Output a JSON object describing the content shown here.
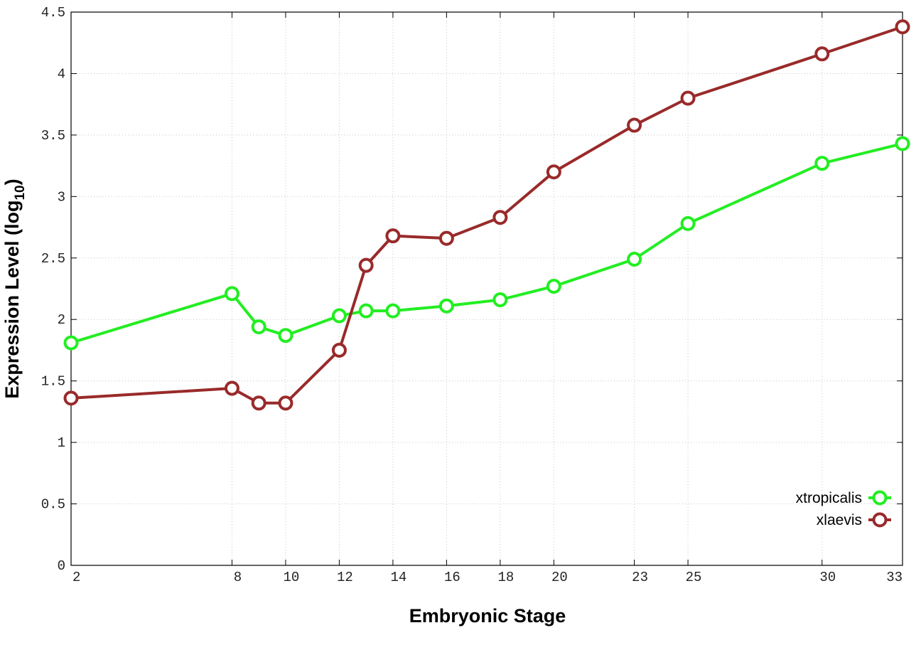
{
  "chart_data": {
    "type": "line",
    "xlabel": "Embryonic Stage",
    "ylabel": "Expression Level (log10)",
    "ylabel_main": "Expression Level (log",
    "ylabel_sub": "10",
    "ylabel_close": ")",
    "xlim": [
      2,
      33
    ],
    "ylim": [
      0,
      4.5
    ],
    "x_ticks": [
      2,
      8,
      10,
      12,
      14,
      16,
      18,
      20,
      23,
      25,
      30,
      33
    ],
    "x_tick_labels": [
      "2",
      "8",
      "10",
      "12",
      "14",
      "16",
      "18",
      "20",
      "23",
      "25",
      "30",
      "33"
    ],
    "y_ticks": [
      0,
      0.5,
      1,
      1.5,
      2,
      2.5,
      3,
      3.5,
      4,
      4.5
    ],
    "y_tick_labels": [
      "0",
      "0.5",
      "1",
      "1.5",
      "2",
      "2.5",
      "3",
      "3.5",
      "4",
      "4.5"
    ],
    "grid": true,
    "legend_position": "bottom-right",
    "x": [
      2,
      8,
      9,
      10,
      12,
      13,
      14,
      16,
      18,
      20,
      23,
      25,
      30,
      33
    ],
    "series": [
      {
        "name": "xtropicalis",
        "color": "#22ee22",
        "values": [
          1.81,
          2.21,
          1.94,
          1.87,
          2.03,
          2.07,
          2.07,
          2.11,
          2.16,
          2.27,
          2.49,
          2.78,
          3.27,
          3.43
        ]
      },
      {
        "name": "xlaevis",
        "color": "#992a2a",
        "values": [
          1.36,
          1.44,
          1.32,
          1.32,
          1.75,
          2.44,
          2.68,
          2.66,
          2.83,
          3.2,
          3.58,
          3.8,
          4.16,
          4.38
        ]
      }
    ]
  }
}
